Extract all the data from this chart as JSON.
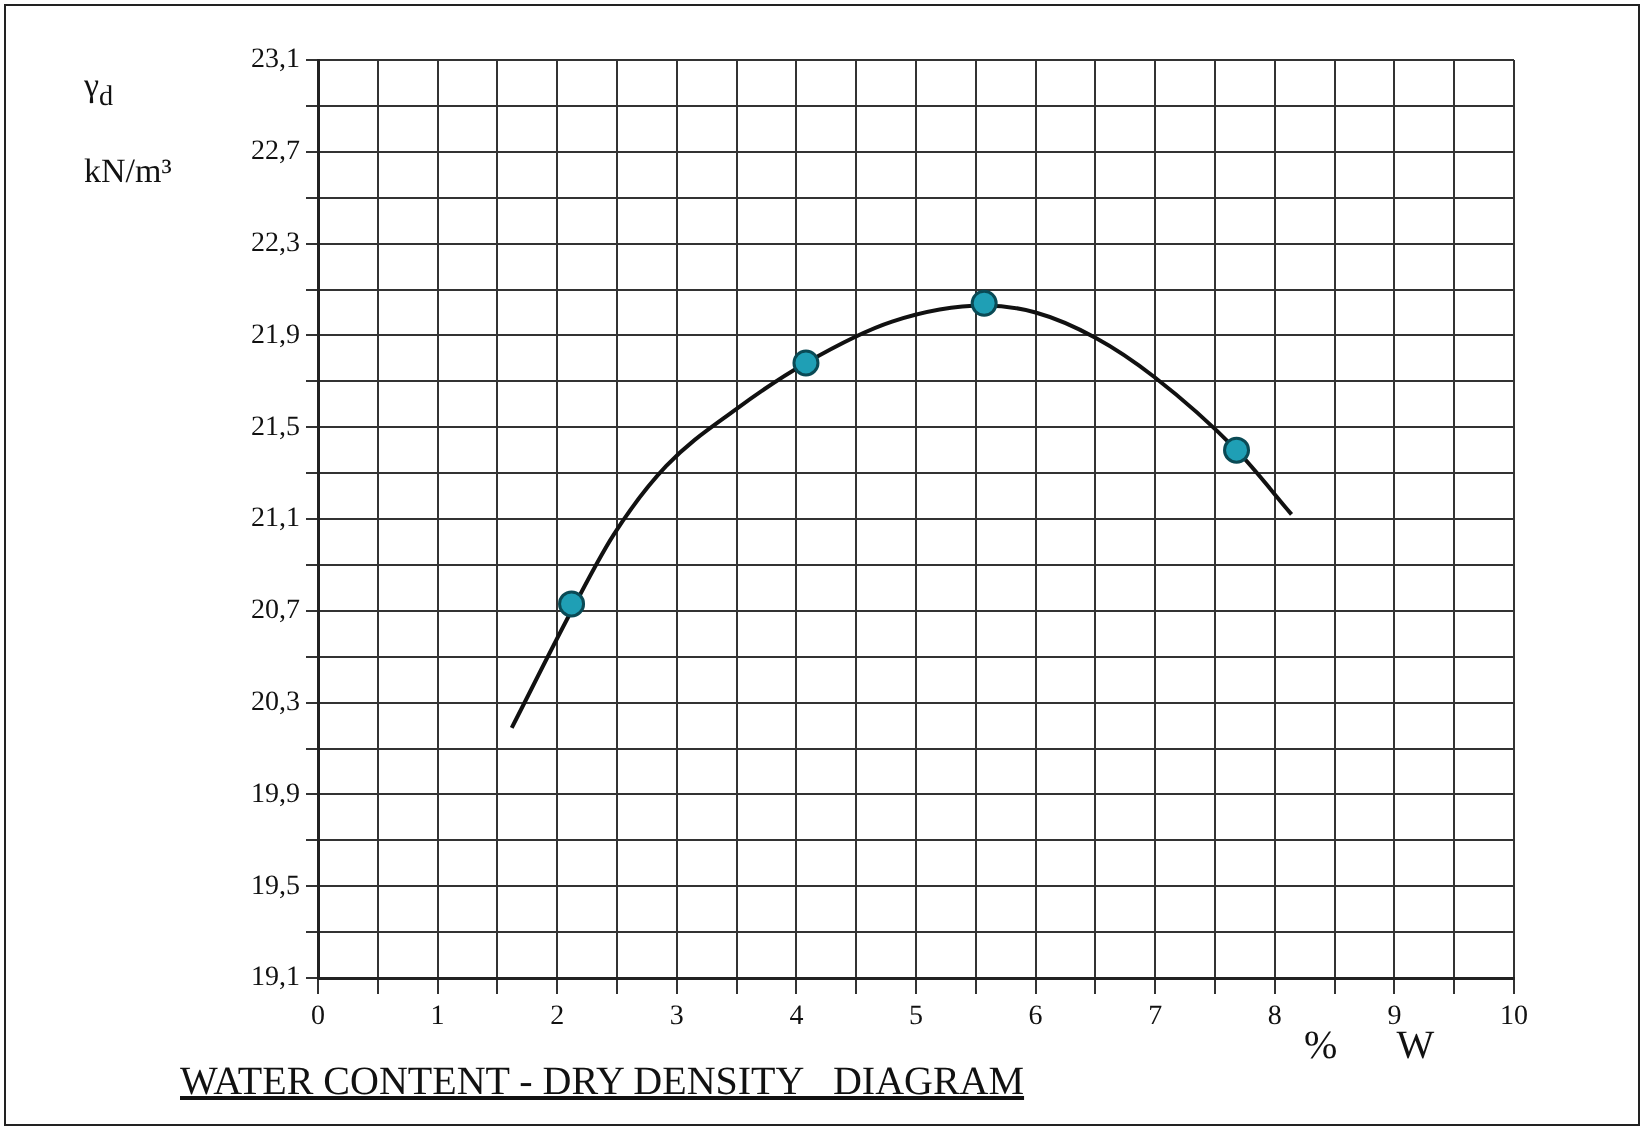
{
  "chart_data": {
    "type": "scatter",
    "title": "WATER CONTENT - DRY DENSITY   DIAGRAM",
    "xlabel": "%      W",
    "ylabel": "γ$_{d}$ kN/m³",
    "xlim": [
      0,
      10
    ],
    "ylim": [
      19.1,
      23.1
    ],
    "grid": true,
    "xticks": [
      0,
      {
        "value": 0.5,
        "label": null
      },
      1,
      {
        "value": 1.5,
        "label": null
      },
      2,
      {
        "value": 2.5,
        "label": null
      },
      3,
      {
        "value": 3.5,
        "label": null
      },
      4,
      {
        "value": 4.5,
        "label": null
      },
      5,
      {
        "value": 5.5,
        "label": null
      },
      6,
      {
        "value": 6.5,
        "label": null
      },
      7,
      {
        "value": 7.5,
        "label": null
      },
      8,
      {
        "value": 8.5,
        "label": null
      },
      9,
      {
        "value": 9.5,
        "label": null
      },
      10
    ],
    "yticks": [
      {
        "value": 19.1,
        "label": "19,1"
      },
      {
        "value": 19.3,
        "label": null
      },
      {
        "value": 19.5,
        "label": "19,5"
      },
      {
        "value": 19.7,
        "label": null
      },
      {
        "value": 19.9,
        "label": "19,9"
      },
      {
        "value": 20.1,
        "label": null
      },
      {
        "value": 20.3,
        "label": "20,3"
      },
      {
        "value": 20.5,
        "label": null
      },
      {
        "value": 20.7,
        "label": "20,7"
      },
      {
        "value": 20.9,
        "label": null
      },
      {
        "value": 21.1,
        "label": "21,1"
      },
      {
        "value": 21.3,
        "label": null
      },
      {
        "value": 21.5,
        "label": "21,5"
      },
      {
        "value": 21.7,
        "label": null
      },
      {
        "value": 21.9,
        "label": "21,9"
      },
      {
        "value": 22.1,
        "label": null
      },
      {
        "value": 22.3,
        "label": "22,3"
      },
      {
        "value": 22.5,
        "label": null
      },
      {
        "value": 22.7,
        "label": "22,7"
      },
      {
        "value": 22.9,
        "label": null
      },
      {
        "value": 23.1,
        "label": "23,1"
      }
    ],
    "series": [
      {
        "type": "line",
        "color": "#111111",
        "marker": "none",
        "line_style": "solid",
        "x": [
          1.62,
          2.12,
          2.47,
          2.91,
          3.5,
          4.08,
          4.8,
          5.57,
          6.0,
          6.5,
          6.99,
          7.68,
          8.14
        ],
        "values": [
          20.19,
          20.7,
          21.03,
          21.33,
          21.58,
          21.78,
          21.96,
          22.03,
          22.0,
          21.89,
          21.72,
          21.4,
          21.12
        ]
      },
      {
        "color": "#1f9fb5",
        "marker": "circle",
        "x": [
          2.12,
          4.08,
          5.57,
          7.68
        ],
        "values": [
          20.73,
          21.78,
          22.04,
          21.4
        ]
      }
    ]
  }
}
